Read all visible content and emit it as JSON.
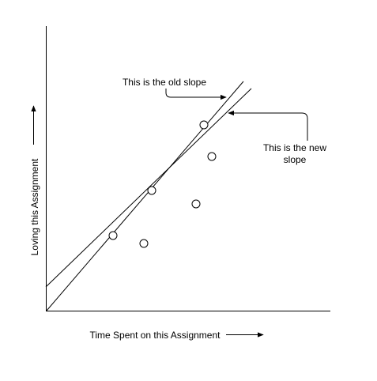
{
  "diagram": {
    "x_axis_label": "Time Spent on this Assignment",
    "y_axis_label": "Loving this Assignment",
    "old_slope_annotation": "This is the old slope",
    "new_slope_annotation_line1": "This is the new",
    "new_slope_annotation_line2": "slope",
    "colors": {
      "stroke": "#000000",
      "background": "#ffffff",
      "point_fill": "#ffffff"
    }
  }
}
